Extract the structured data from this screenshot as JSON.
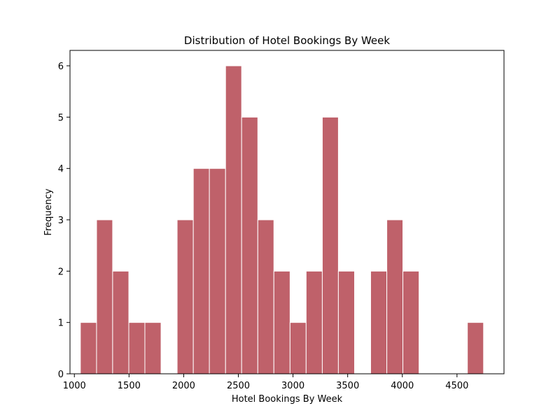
{
  "chart_data": {
    "type": "bar",
    "title": "Distribution of Hotel Bookings By Week",
    "xlabel": "Hotel Bookings By Week",
    "ylabel": "Frequency",
    "xlim": [
      960,
      4930
    ],
    "ylim": [
      0,
      6.3
    ],
    "xticks": [
      1000,
      1500,
      2000,
      2500,
      3000,
      3500,
      4000,
      4500
    ],
    "yticks": [
      0,
      1,
      2,
      3,
      4,
      5,
      6
    ],
    "grid": false,
    "bar_color": "#bf616a",
    "bins": [
      {
        "x0": 1055,
        "x1": 1203,
        "value": 1
      },
      {
        "x0": 1203,
        "x1": 1350,
        "value": 3
      },
      {
        "x0": 1350,
        "x1": 1498,
        "value": 2
      },
      {
        "x0": 1498,
        "x1": 1645,
        "value": 1
      },
      {
        "x0": 1645,
        "x1": 1793,
        "value": 1
      },
      {
        "x0": 1793,
        "x1": 1940,
        "value": 0
      },
      {
        "x0": 1940,
        "x1": 2088,
        "value": 3
      },
      {
        "x0": 2088,
        "x1": 2235,
        "value": 4
      },
      {
        "x0": 2235,
        "x1": 2383,
        "value": 4
      },
      {
        "x0": 2383,
        "x1": 2530,
        "value": 6
      },
      {
        "x0": 2530,
        "x1": 2678,
        "value": 5
      },
      {
        "x0": 2678,
        "x1": 2825,
        "value": 3
      },
      {
        "x0": 2825,
        "x1": 2973,
        "value": 2
      },
      {
        "x0": 2973,
        "x1": 3120,
        "value": 1
      },
      {
        "x0": 3120,
        "x1": 3268,
        "value": 2
      },
      {
        "x0": 3268,
        "x1": 3415,
        "value": 5
      },
      {
        "x0": 3415,
        "x1": 3563,
        "value": 2
      },
      {
        "x0": 3563,
        "x1": 3710,
        "value": 0
      },
      {
        "x0": 3710,
        "x1": 3858,
        "value": 2
      },
      {
        "x0": 3858,
        "x1": 4005,
        "value": 3
      },
      {
        "x0": 4005,
        "x1": 4153,
        "value": 2
      },
      {
        "x0": 4153,
        "x1": 4300,
        "value": 0
      },
      {
        "x0": 4300,
        "x1": 4448,
        "value": 0
      },
      {
        "x0": 4448,
        "x1": 4595,
        "value": 0
      },
      {
        "x0": 4595,
        "x1": 4743,
        "value": 1
      }
    ]
  }
}
